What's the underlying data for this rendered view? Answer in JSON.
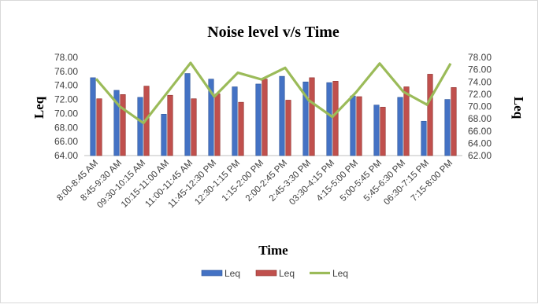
{
  "chart_data": {
    "type": "bar",
    "title": "Noise level v/s Time",
    "xlabel": "Time",
    "ylabel": "Leq",
    "y2label": "Leq",
    "categories": [
      "8:00-8:45 AM",
      "8:45-9:30 AM",
      "09:30-10:15 AM",
      "10:15-11:00 AM",
      "11:00-11:45 AM",
      "11:45-12:30 PM",
      "12:30-1:15 PM",
      "1:15-2:00 PM",
      "2:00-2:45 PM",
      "2:45-3:30 PM",
      "03:30-4:15 PM",
      "4:15-5:00 PM",
      "5:00-5:45 PM",
      "5:45-6:30 PM",
      "06:30-7:15 PM",
      "7:15-8:00 PM"
    ],
    "ylim": [
      64,
      78
    ],
    "y_ticks": [
      "64.00",
      "66.00",
      "68.00",
      "70.00",
      "72.00",
      "74.00",
      "76.00",
      "78.00"
    ],
    "y2lim": [
      62,
      78
    ],
    "y2_ticks": [
      "62.00",
      "64.00",
      "66.00",
      "68.00",
      "70.00",
      "72.00",
      "74.00",
      "76.00",
      "78.00"
    ],
    "legend_position": "bottom",
    "series": [
      {
        "name": "Leq",
        "type": "bar",
        "axis": "left",
        "color": "#4472c4",
        "values": [
          75.1,
          73.3,
          72.3,
          69.9,
          75.7,
          74.9,
          73.8,
          74.2,
          75.3,
          74.5,
          74.4,
          72.5,
          71.2,
          72.3,
          68.9,
          72.0
        ]
      },
      {
        "name": "Leq",
        "type": "bar",
        "axis": "left",
        "color": "#c0504d",
        "values": [
          72.1,
          72.7,
          73.9,
          72.6,
          72.1,
          72.8,
          71.6,
          74.9,
          71.9,
          75.1,
          74.6,
          72.4,
          70.9,
          73.8,
          75.6,
          73.7
        ]
      },
      {
        "name": "Leq",
        "type": "line",
        "axis": "right",
        "color": "#9bbb59",
        "values": [
          74.5,
          70.0,
          67.3,
          72.2,
          77.1,
          71.6,
          75.5,
          74.4,
          76.3,
          71.0,
          68.3,
          72.3,
          77.0,
          72.4,
          70.3,
          77.0
        ]
      }
    ]
  }
}
